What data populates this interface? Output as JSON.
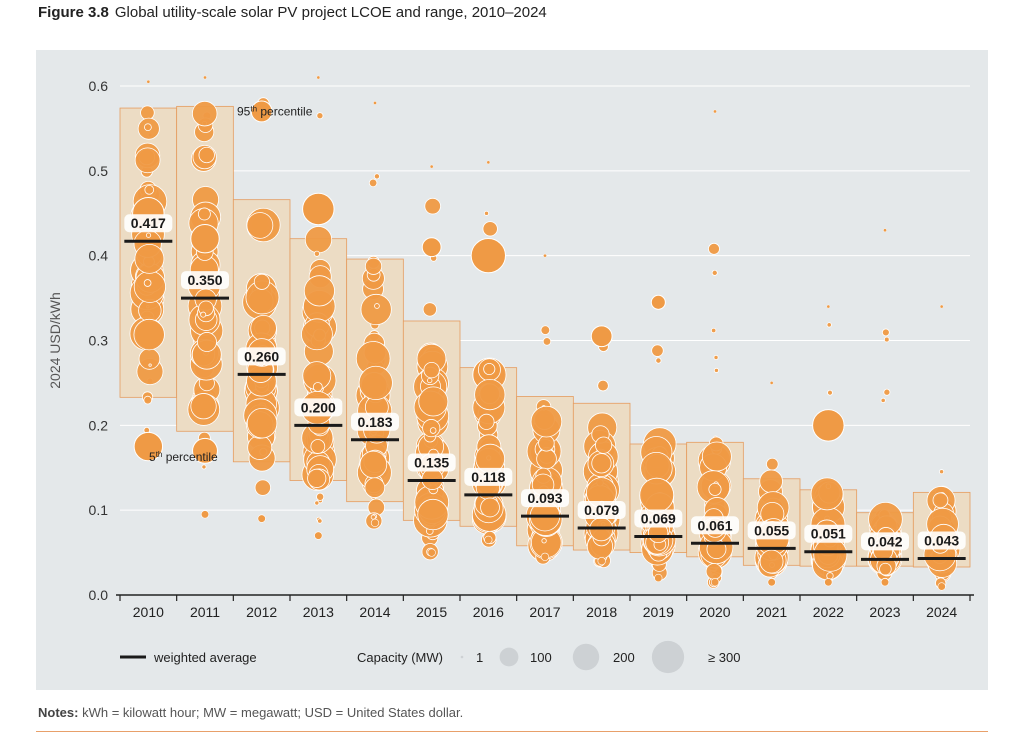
{
  "figure": {
    "label": "Figure 3.8",
    "title": "Global utility-scale solar PV project LCOE and range, 2010–2024"
  },
  "notes": {
    "label": "Notes:",
    "text": "kWh = kilowatt hour; MW = megawatt; USD = United States dollar."
  },
  "colors": {
    "dot": "#ef9a45",
    "band": "#ecdcc4",
    "band_border": "#e59c5f",
    "avg": "#1a1a1a",
    "panel": "#e4e8ea"
  },
  "chart_data": {
    "type": "scatter",
    "title": "Global utility-scale solar PV project LCOE and range, 2010–2024",
    "ylabel": "2024 USD/kWh",
    "ylim": [
      0,
      0.6
    ],
    "yticks": [
      0.0,
      0.1,
      0.2,
      0.3,
      0.4,
      0.5,
      0.6
    ],
    "ytick_labels": [
      "0.0",
      "0.1",
      "0.2",
      "0.3",
      "0.4",
      "0.5",
      "0.6"
    ],
    "categories": [
      "2010",
      "2011",
      "2012",
      "2013",
      "2014",
      "2015",
      "2016",
      "2017",
      "2018",
      "2019",
      "2020",
      "2021",
      "2022",
      "2023",
      "2024"
    ],
    "weighted_average": [
      0.417,
      0.35,
      0.26,
      0.2,
      0.183,
      0.135,
      0.118,
      0.093,
      0.079,
      0.069,
      0.061,
      0.055,
      0.051,
      0.042,
      0.043
    ],
    "average_labels": [
      "0.417",
      "0.350",
      "0.260",
      "0.200",
      "0.183",
      "0.135",
      "0.118",
      "0.093",
      "0.079",
      "0.069",
      "0.061",
      "0.055",
      "0.051",
      "0.042",
      "0.043"
    ],
    "percentile_95": [
      0.574,
      0.576,
      0.466,
      0.42,
      0.396,
      0.323,
      0.268,
      0.234,
      0.226,
      0.178,
      0.18,
      0.137,
      0.124,
      0.097,
      0.121
    ],
    "percentile_5": [
      0.233,
      0.193,
      0.157,
      0.135,
      0.11,
      0.088,
      0.081,
      0.058,
      0.053,
      0.05,
      0.045,
      0.035,
      0.034,
      0.034,
      0.033
    ],
    "project_range": [
      [
        0.17,
        0.605
      ],
      [
        0.095,
        0.61
      ],
      [
        0.09,
        0.58
      ],
      [
        0.07,
        0.61
      ],
      [
        0.085,
        0.58
      ],
      [
        0.05,
        0.505
      ],
      [
        0.065,
        0.51
      ],
      [
        0.045,
        0.4
      ],
      [
        0.04,
        0.305
      ],
      [
        0.02,
        0.345
      ],
      [
        0.015,
        0.57
      ],
      [
        0.015,
        0.25
      ],
      [
        0.015,
        0.34
      ],
      [
        0.015,
        0.43
      ],
      [
        0.01,
        0.34
      ]
    ],
    "notable_projects": [
      {
        "year": "2010",
        "y": 0.175,
        "mw": 200
      },
      {
        "year": "2010",
        "y": 0.45,
        "mw": 250
      },
      {
        "year": "2011",
        "y": 0.42,
        "mw": 200
      },
      {
        "year": "2011",
        "y": 0.17,
        "mw": 150
      },
      {
        "year": "2012",
        "y": 0.57,
        "mw": 100
      },
      {
        "year": "2013",
        "y": 0.455,
        "mw": 250
      },
      {
        "year": "2015",
        "y": 0.41,
        "mw": 80
      },
      {
        "year": "2016",
        "y": 0.4,
        "mw": 300
      },
      {
        "year": "2018",
        "y": 0.305,
        "mw": 100
      },
      {
        "year": "2019",
        "y": 0.345,
        "mw": 40
      },
      {
        "year": "2022",
        "y": 0.2,
        "mw": 250
      }
    ],
    "annotations": {
      "p95": {
        "prefix": "95",
        "suffix": "th",
        "text": " percentile"
      },
      "p5": {
        "prefix": "5",
        "suffix": "th",
        "text": " percentile"
      }
    },
    "legend": {
      "avg_label": "weighted average",
      "capacity_title": "Capacity (MW)",
      "sizes": [
        {
          "label": "1",
          "mw": 1
        },
        {
          "label": "100",
          "mw": 100
        },
        {
          "label": "200",
          "mw": 200
        },
        {
          "label": "≥ 300",
          "mw": 300
        }
      ]
    },
    "grid": true
  }
}
